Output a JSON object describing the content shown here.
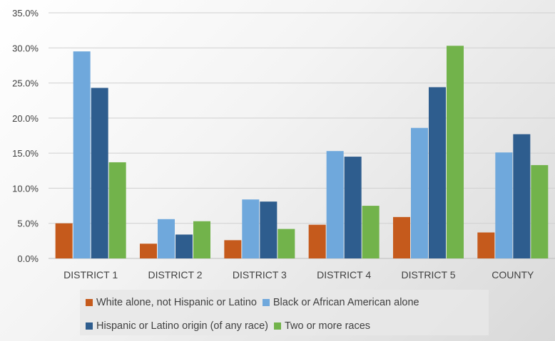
{
  "chart_data": {
    "type": "bar",
    "categories": [
      "DISTRICT 1",
      "DISTRICT 2",
      "DISTRICT 3",
      "DISTRICT 4",
      "DISTRICT 5",
      "COUNTY"
    ],
    "series": [
      {
        "name": "White alone, not Hispanic or Latino",
        "color": "#C55A1C",
        "values": [
          5.0,
          2.1,
          2.6,
          4.8,
          5.9,
          3.7
        ]
      },
      {
        "name": "Black or African American alone",
        "color": "#6FA8DC",
        "values": [
          29.5,
          5.6,
          8.4,
          15.3,
          18.6,
          15.1
        ]
      },
      {
        "name": "Hispanic or Latino origin (of any race)",
        "color": "#2E5D8E",
        "values": [
          24.3,
          3.4,
          8.1,
          14.5,
          24.4,
          17.7
        ]
      },
      {
        "name": "Two or more races",
        "color": "#72B34B",
        "values": [
          13.7,
          5.3,
          4.2,
          7.5,
          30.3,
          13.3
        ]
      }
    ],
    "yticks": [
      "0.0%",
      "5.0%",
      "10.0%",
      "15.0%",
      "20.0%",
      "25.0%",
      "30.0%",
      "35.0%"
    ],
    "ylim": [
      0,
      35
    ],
    "grid": true,
    "legend_position": "bottom"
  }
}
